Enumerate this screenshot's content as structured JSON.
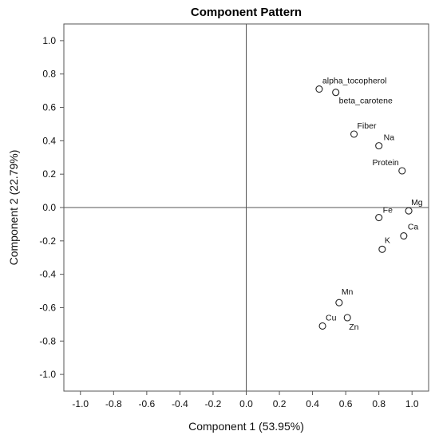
{
  "chart_data": {
    "type": "scatter",
    "title": "Component Pattern",
    "xlabel": "Component 1 (53.95%)",
    "ylabel": "Component 2 (22.79%)",
    "xlim": [
      -1.1,
      1.1
    ],
    "ylim": [
      -1.1,
      1.1
    ],
    "x_ticks": [
      "-1.0",
      "-0.8",
      "-0.6",
      "-0.4",
      "-0.2",
      "0.0",
      "0.2",
      "0.4",
      "0.6",
      "0.8",
      "1.0"
    ],
    "y_ticks": [
      "1.0",
      "0.8",
      "0.6",
      "0.4",
      "0.2",
      "0.0",
      "-0.2",
      "-0.4",
      "-0.6",
      "-0.8",
      "-1.0"
    ],
    "reference_lines": {
      "x": 0,
      "y": 0
    },
    "marker": "open-circle",
    "grid": false,
    "points": [
      {
        "label": "alpha_tocopherol",
        "x": 0.44,
        "y": 0.71
      },
      {
        "label": "beta_carotene",
        "x": 0.54,
        "y": 0.69
      },
      {
        "label": "Fiber",
        "x": 0.65,
        "y": 0.44
      },
      {
        "label": "Na",
        "x": 0.8,
        "y": 0.37
      },
      {
        "label": "Protein",
        "x": 0.94,
        "y": 0.22
      },
      {
        "label": "Mg",
        "x": 0.98,
        "y": -0.02
      },
      {
        "label": "Fe",
        "x": 0.8,
        "y": -0.06
      },
      {
        "label": "Ca",
        "x": 0.95,
        "y": -0.17
      },
      {
        "label": "K",
        "x": 0.82,
        "y": -0.25
      },
      {
        "label": "Mn",
        "x": 0.56,
        "y": -0.57
      },
      {
        "label": "Cu",
        "x": 0.46,
        "y": -0.71
      },
      {
        "label": "Zn",
        "x": 0.61,
        "y": -0.66
      }
    ]
  }
}
